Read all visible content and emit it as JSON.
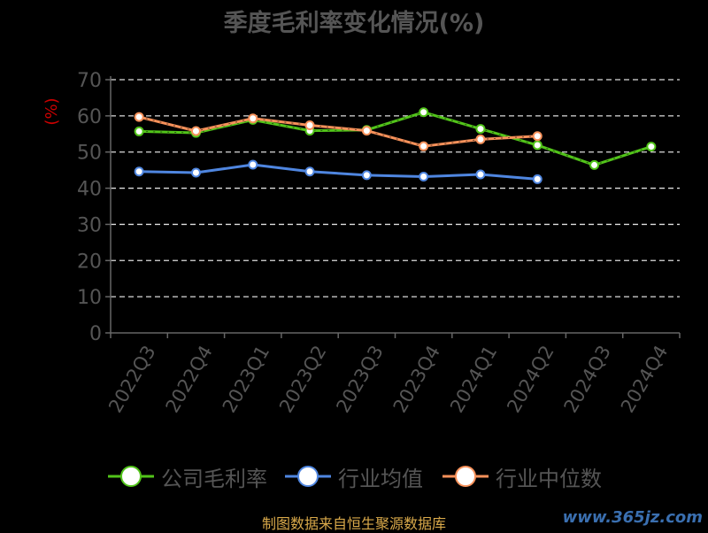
{
  "chart_data": {
    "type": "line",
    "title": "季度毛利率变化情况(%)",
    "ylabel": "(%)",
    "xlabel": "",
    "ylim": [
      0,
      70
    ],
    "yticks": [
      0,
      10,
      20,
      30,
      40,
      50,
      60,
      70
    ],
    "grid": true,
    "legend_position": "bottom",
    "categories": [
      "2022Q3",
      "2022Q4",
      "2023Q1",
      "2023Q2",
      "2023Q3",
      "2023Q4",
      "2024Q1",
      "2024Q2",
      "2024Q3",
      "2024Q4"
    ],
    "series": [
      {
        "name": "公司毛利率",
        "color": "#52c41a",
        "values": [
          55.7,
          55.3,
          58.9,
          55.9,
          56.1,
          61.0,
          56.4,
          51.9,
          46.4,
          51.5
        ]
      },
      {
        "name": "行业均值",
        "color": "#4f86e0",
        "values": [
          44.6,
          44.3,
          46.5,
          44.6,
          43.6,
          43.2,
          43.8,
          42.5,
          null,
          null
        ]
      },
      {
        "name": "行业中位数",
        "color": "#f7915a",
        "values": [
          59.7,
          55.8,
          59.3,
          57.4,
          55.9,
          51.6,
          53.5,
          54.4,
          null,
          null
        ]
      }
    ]
  },
  "source": "制图数据来自恒生聚源数据库",
  "watermark": "www.365jz.com"
}
